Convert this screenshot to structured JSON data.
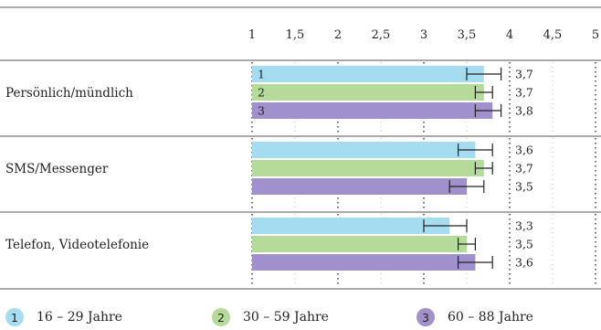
{
  "chart_data": {
    "type": "bar",
    "orientation": "horizontal",
    "title": "",
    "xlabel": "",
    "ylabel": "",
    "xlim": [
      1,
      5
    ],
    "x_ticks": [
      "1",
      "1,5",
      "2",
      "2,5",
      "3",
      "3,5",
      "4",
      "4,5",
      "5"
    ],
    "categories": [
      "Persönlich/mündlich",
      "SMS/Messenger",
      "Telefon, Videotelefonie"
    ],
    "series": [
      {
        "name": "16 – 29 Jahre",
        "index": "1",
        "color": "#a6dcef",
        "values": [
          3.7,
          3.6,
          3.3
        ],
        "labels": [
          "3,7",
          "3,6",
          "3,3"
        ],
        "error_low": [
          3.5,
          3.4,
          3.0
        ],
        "error_high": [
          3.9,
          3.8,
          3.5
        ]
      },
      {
        "name": "30 – 59 Jahre",
        "index": "2",
        "color": "#b5db9a",
        "values": [
          3.7,
          3.7,
          3.5
        ],
        "labels": [
          "3,7",
          "3,7",
          "3,5"
        ],
        "error_low": [
          3.6,
          3.6,
          3.4
        ],
        "error_high": [
          3.8,
          3.8,
          3.6
        ]
      },
      {
        "name": "60 – 88 Jahre",
        "index": "3",
        "color": "#a090cb",
        "values": [
          3.8,
          3.5,
          3.6
        ],
        "labels": [
          "3,8",
          "3,5",
          "3,6"
        ],
        "error_low": [
          3.6,
          3.3,
          3.4
        ],
        "error_high": [
          3.9,
          3.7,
          3.8
        ]
      }
    ],
    "legend_position": "bottom",
    "grid": "dotted vertical"
  }
}
